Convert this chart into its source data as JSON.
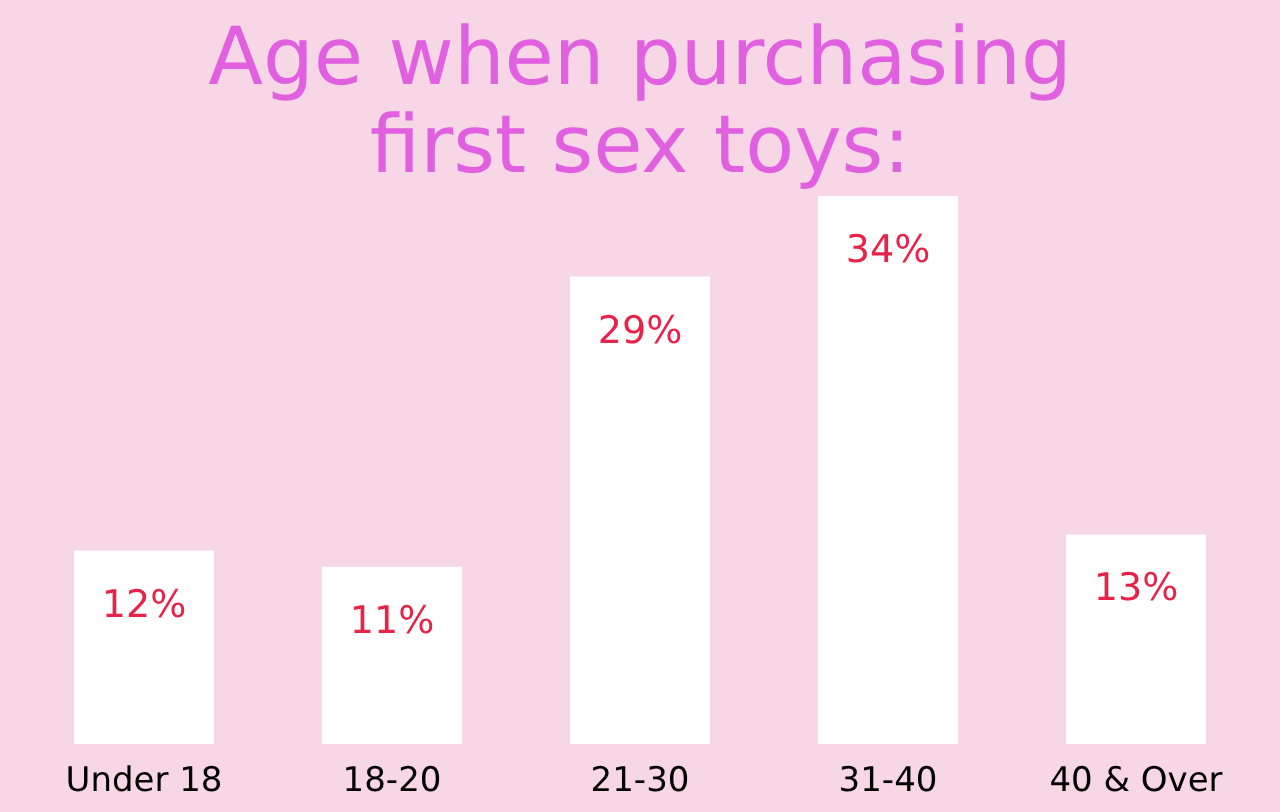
{
  "chart_data": {
    "type": "bar",
    "title": "Age when purchasing\nfirst  sex toys:",
    "categories": [
      "Under 18",
      "18-20",
      "21-30",
      "31-40",
      "40 & Over"
    ],
    "values": [
      12,
      11,
      29,
      34,
      13
    ],
    "color": "#ffffff",
    "value_labels": [
      "12%",
      "11%",
      "29%",
      "34%",
      "13%"
    ]
  }
}
